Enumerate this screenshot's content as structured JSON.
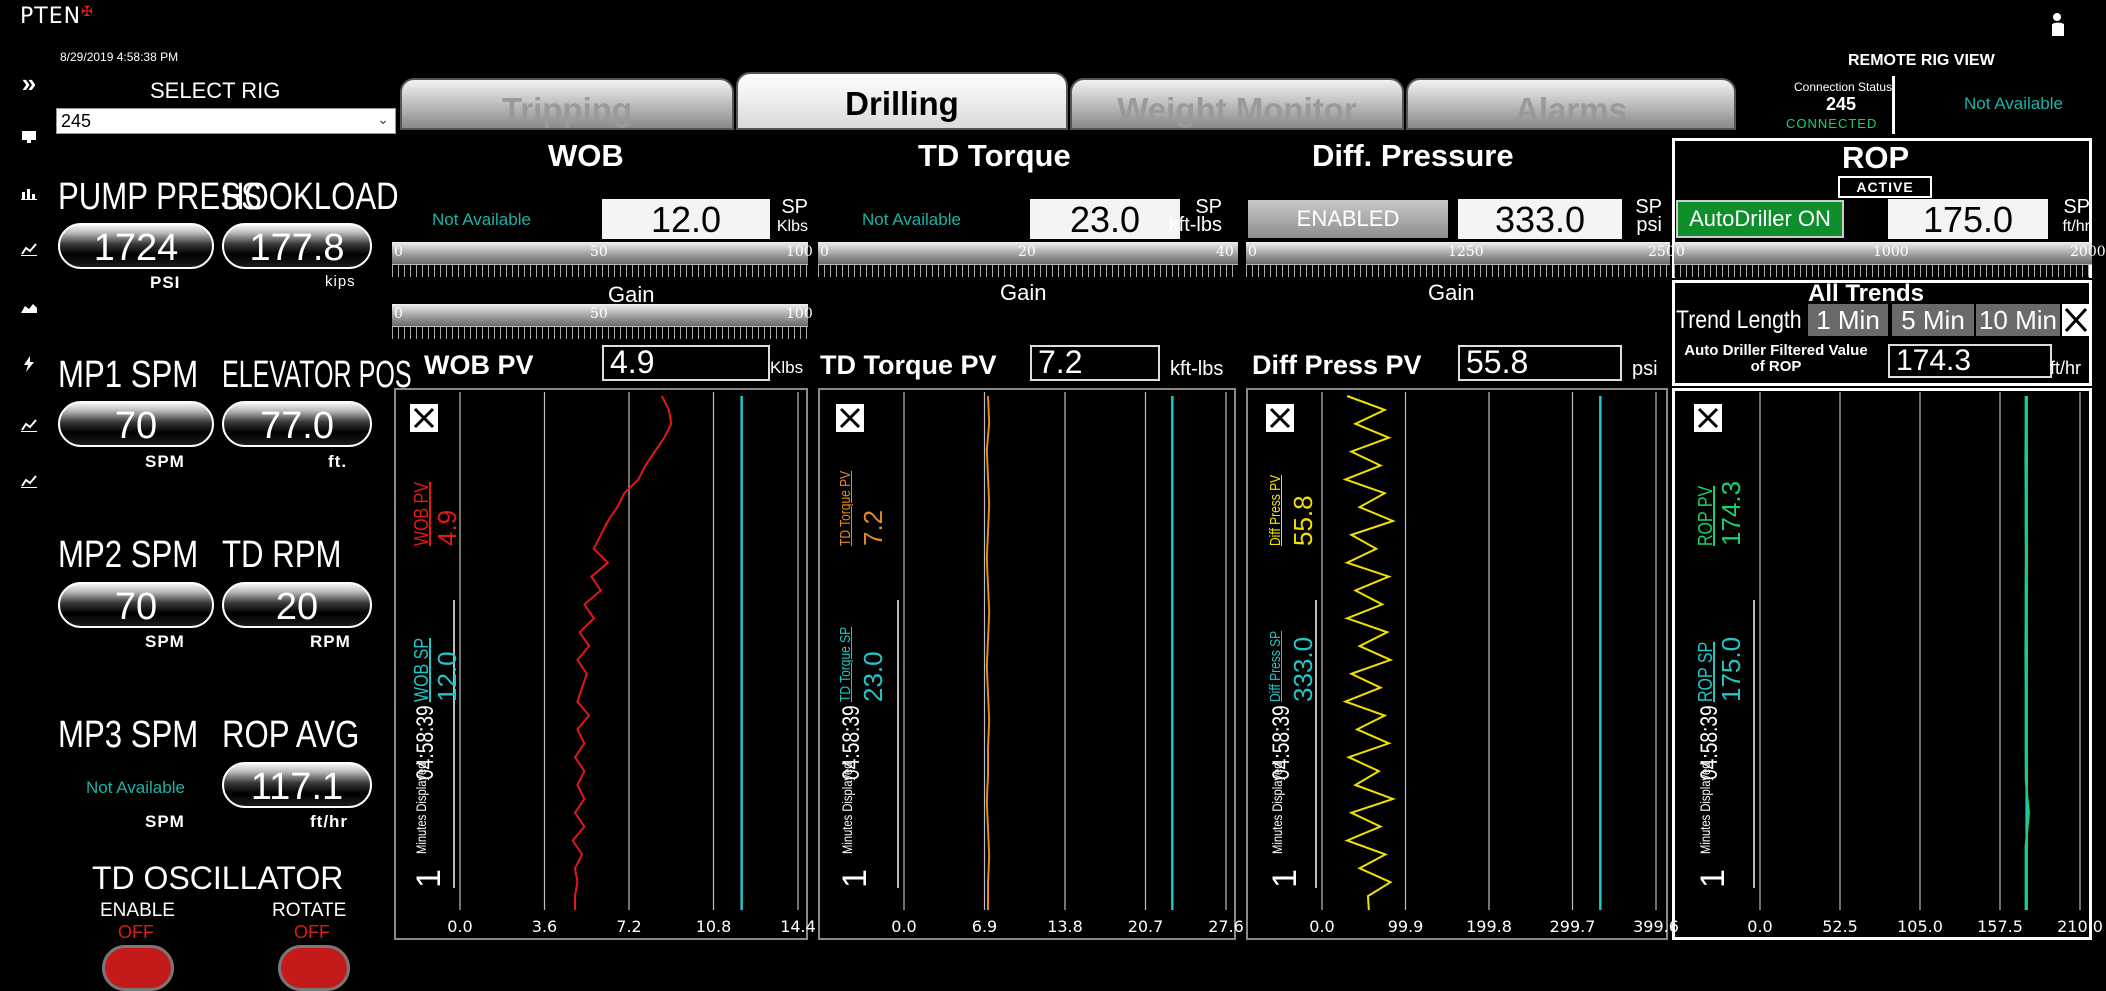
{
  "brand": "PTEN",
  "datetime": "8/29/2019 4:58:38 PM",
  "select_rig": {
    "label": "SELECT RIG",
    "value": "245"
  },
  "metrics": {
    "pump_press": {
      "label": "PUMP PRESS",
      "value": "1724",
      "unit": "PSI"
    },
    "hookload": {
      "label": "HOOKLOAD",
      "value": "177.8",
      "unit": "kips"
    },
    "mp1_spm": {
      "label": "MP1 SPM",
      "value": "70",
      "unit": "SPM"
    },
    "elevator_pos": {
      "label": "ELEVATOR POS",
      "value": "77.0",
      "unit": "ft."
    },
    "mp2_spm": {
      "label": "MP2 SPM",
      "value": "70",
      "unit": "SPM"
    },
    "td_rpm": {
      "label": "TD RPM",
      "value": "20",
      "unit": "RPM"
    },
    "mp3_spm": {
      "label": "MP3 SPM",
      "value": "Not Available",
      "unit": "SPM"
    },
    "rop_avg": {
      "label": "ROP AVG",
      "value": "117.1",
      "unit": "ft/hr"
    }
  },
  "td_oscillator": {
    "title": "TD OSCILLATOR",
    "enable": {
      "label": "ENABLE",
      "state": "OFF"
    },
    "rotate": {
      "label": "ROTATE",
      "state": "OFF"
    }
  },
  "tabs": [
    {
      "label": "Tripping",
      "active": false
    },
    {
      "label": "Drilling",
      "active": true
    },
    {
      "label": "Weight Monitor",
      "active": false
    },
    {
      "label": "Alarms",
      "active": false
    }
  ],
  "remote": {
    "title": "REMOTE RIG VIEW",
    "status_label": "Connection Status",
    "rig": "245",
    "state": "CONNECTED",
    "availability": "Not Available"
  },
  "panels": {
    "wob": {
      "title": "WOB",
      "status": "Not Available",
      "sp": "12.0",
      "sp_label": "SP",
      "sp_unit": "Klbs",
      "slider": {
        "min": "0",
        "mid": "50",
        "max": "100"
      },
      "gain_label": "Gain",
      "gain": {
        "min": "0",
        "mid": "50",
        "max": "100"
      },
      "pv_label": "WOB PV",
      "pv": "4.9",
      "pv_unit": "Klbs",
      "trend_pv_label": "WOB PV",
      "trend_pv": "4.9",
      "trend_sp_label": "WOB SP",
      "trend_sp": "12.0",
      "time": "04:58:39",
      "minutes_label": "Minutes Displayed",
      "minutes": "1",
      "axis": [
        "0.0",
        "3.6",
        "7.2",
        "10.8",
        "14.4"
      ]
    },
    "td_torque": {
      "title": "TD Torque",
      "status": "Not Available",
      "sp": "23.0",
      "sp_label": "SP",
      "sp_unit": "kft-lbs",
      "slider": {
        "min": "0",
        "mid": "20",
        "max": "40"
      },
      "gain_label": "Gain",
      "pv_label": "TD Torque PV",
      "pv": "7.2",
      "pv_unit": "kft-lbs",
      "trend_pv_label": "TD Torque PV",
      "trend_pv": "7.2",
      "trend_sp_label": "TD Torque SP",
      "trend_sp": "23.0",
      "time": "04:58:39",
      "minutes_label": "Minutes Displayed",
      "minutes": "1",
      "axis": [
        "0.0",
        "6.9",
        "13.8",
        "20.7",
        "27.6"
      ]
    },
    "diff_pressure": {
      "title": "Diff. Pressure",
      "status": "ENABLED",
      "sp": "333.0",
      "sp_label": "SP",
      "sp_unit": "psi",
      "slider": {
        "min": "0",
        "mid": "1250",
        "max": "2500"
      },
      "gain_label": "Gain",
      "pv_label": "Diff Press PV",
      "pv": "55.8",
      "pv_unit": "psi",
      "trend_pv_label": "Diff Press PV",
      "trend_pv": "55.8",
      "trend_sp_label": "Diff Press SP",
      "trend_sp": "333.0",
      "time": "04:58:39",
      "minutes_label": "Minutes Displayed",
      "minutes": "1",
      "axis": [
        "0.0",
        "99.9",
        "199.8",
        "299.7",
        "399.6"
      ]
    },
    "rop": {
      "title": "ROP",
      "badge": "ACTIVE",
      "status": "AutoDriller ON",
      "sp": "175.0",
      "sp_label": "SP",
      "sp_unit": "ft/hr",
      "slider": {
        "min": "0",
        "mid": "1000",
        "max": "2000"
      },
      "all_trends": "All Trends",
      "trend_length_label": "Trend Length",
      "trend_options": [
        "1 Min",
        "5 Min",
        "10 Min"
      ],
      "filtered_label": "Auto Driller Filtered Value of ROP",
      "filtered_value": "174.3",
      "filtered_unit": "ft/hr",
      "trend_pv_label": "ROP PV",
      "trend_pv": "174.3",
      "trend_sp_label": "ROP SP",
      "trend_sp": "175.0",
      "time": "04:58:39",
      "minutes_label": "Minutes Displayed",
      "minutes": "1",
      "axis": [
        "0.0",
        "52.5",
        "105.0",
        "157.5",
        "210.0"
      ]
    }
  },
  "colors": {
    "teal": "#1ab3a6",
    "red": "#e01818",
    "orange": "#e38a1e",
    "yellow": "#f2e100",
    "green": "#19d16b",
    "sp_line": "#20c6c8",
    "autodriller": "#0f8f2b"
  },
  "icons": [
    "chevron-right-icon",
    "monitor-icon",
    "bar-chart-icon",
    "line-chart-icon",
    "area-chart-icon",
    "bolt-icon",
    "line-chart-icon",
    "line-chart-icon"
  ],
  "chart_data": [
    {
      "type": "line",
      "title": "WOB",
      "xlabel": "",
      "ylabel": "",
      "x_ticks": [
        0.0,
        3.6,
        7.2,
        10.8,
        14.4
      ],
      "xlim": [
        0,
        14.4
      ],
      "series": [
        {
          "name": "WOB PV",
          "values": [
            8.6,
            8.9,
            9.0,
            8.7,
            8.3,
            7.9,
            7.6,
            7.0,
            6.7,
            6.3,
            6.0,
            5.7,
            6.3,
            5.6,
            6.0,
            5.3,
            5.7,
            5.1,
            5.5,
            5.0,
            5.4,
            5.2,
            5.0,
            5.5,
            5.0,
            5.3,
            4.9,
            5.3,
            5.0,
            5.3,
            4.9,
            5.3,
            4.8,
            5.2,
            4.9,
            5.0,
            4.9,
            4.9
          ]
        },
        {
          "name": "WOB SP",
          "values": [
            12.0,
            12.0
          ]
        }
      ]
    },
    {
      "type": "line",
      "title": "TD Torque",
      "xlabel": "",
      "ylabel": "",
      "x_ticks": [
        0.0,
        6.9,
        13.8,
        20.7,
        27.6
      ],
      "xlim": [
        0,
        27.6
      ],
      "series": [
        {
          "name": "TD Torque PV",
          "values": [
            7.2,
            7.3,
            7.1,
            7.2,
            7.3,
            7.2,
            7.1,
            7.2,
            7.3,
            7.2,
            7.1,
            7.2,
            7.3,
            7.2,
            7.2,
            7.1,
            7.2,
            7.3,
            7.2,
            7.2
          ]
        },
        {
          "name": "TD Torque SP",
          "values": [
            23.0,
            23.0
          ]
        }
      ]
    },
    {
      "type": "line",
      "title": "Diff. Pressure",
      "xlabel": "",
      "ylabel": "",
      "x_ticks": [
        0.0,
        99.9,
        199.8,
        299.7,
        399.6
      ],
      "xlim": [
        0,
        399.6
      ],
      "series": [
        {
          "name": "Diff Press PV",
          "values": [
            30,
            75,
            40,
            80,
            35,
            70,
            28,
            75,
            45,
            85,
            35,
            65,
            30,
            80,
            40,
            72,
            30,
            78,
            45,
            82,
            35,
            70,
            28,
            75,
            42,
            80,
            32,
            68,
            40,
            85,
            35,
            70,
            30,
            76,
            45,
            82,
            55,
            56
          ]
        },
        {
          "name": "Diff Press SP",
          "values": [
            333.0,
            333.0
          ]
        }
      ]
    },
    {
      "type": "line",
      "title": "ROP",
      "xlabel": "",
      "ylabel": "",
      "x_ticks": [
        0.0,
        52.5,
        105.0,
        157.5,
        210.0
      ],
      "xlim": [
        0,
        210.0
      ],
      "series": [
        {
          "name": "ROP PV",
          "values": [
            174.3,
            174.3,
            174.2,
            174.3,
            174.3,
            174.4,
            174.3,
            174.3,
            174.2,
            174.3,
            174.3,
            174.3,
            174.4,
            176.5,
            174.3,
            174.3,
            174.3
          ]
        },
        {
          "name": "ROP SP",
          "values": [
            175.0,
            175.0
          ]
        }
      ]
    }
  ]
}
